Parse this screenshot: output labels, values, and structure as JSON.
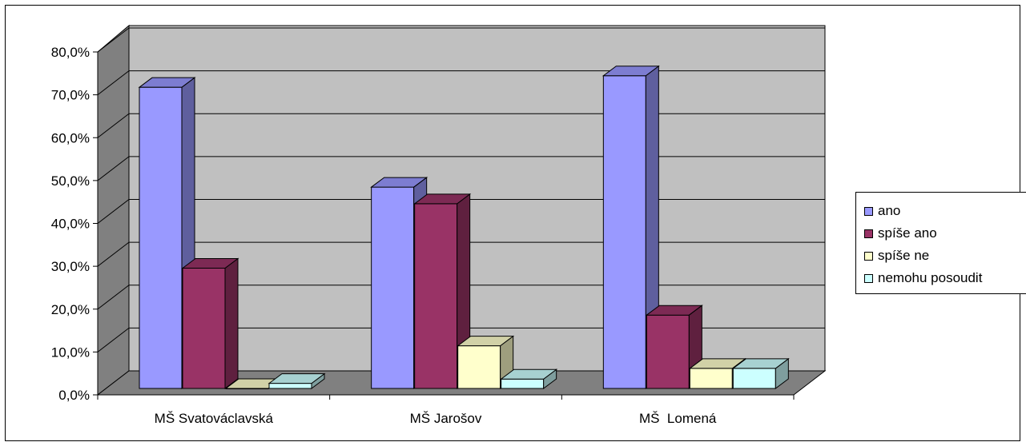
{
  "chart_data": {
    "type": "bar",
    "categories": [
      "MŠ Svatováclavská",
      "MŠ Jarošov",
      "MŠ  Lomená"
    ],
    "series": [
      {
        "name": "ano",
        "values": [
          70.6,
          47.2,
          73.3
        ],
        "color": "#9999ff"
      },
      {
        "name": "spíše ano",
        "values": [
          28.2,
          43.3,
          17.2
        ],
        "color": "#993366"
      },
      {
        "name": "spíše ne",
        "values": [
          0.0,
          10.0,
          4.7
        ],
        "color": "#ffffcc"
      },
      {
        "name": "nemohu posoudit",
        "values": [
          1.2,
          2.2,
          4.7
        ],
        "color": "#ccffff"
      }
    ],
    "yticks": [
      "0,0%",
      "10,0%",
      "20,0%",
      "30,0%",
      "40,0%",
      "50,0%",
      "60,0%",
      "70,0%",
      "80,0%"
    ],
    "ylim": [
      0,
      80
    ],
    "grid": true,
    "legend": "right",
    "title": "",
    "xlabel": "",
    "ylabel": ""
  }
}
